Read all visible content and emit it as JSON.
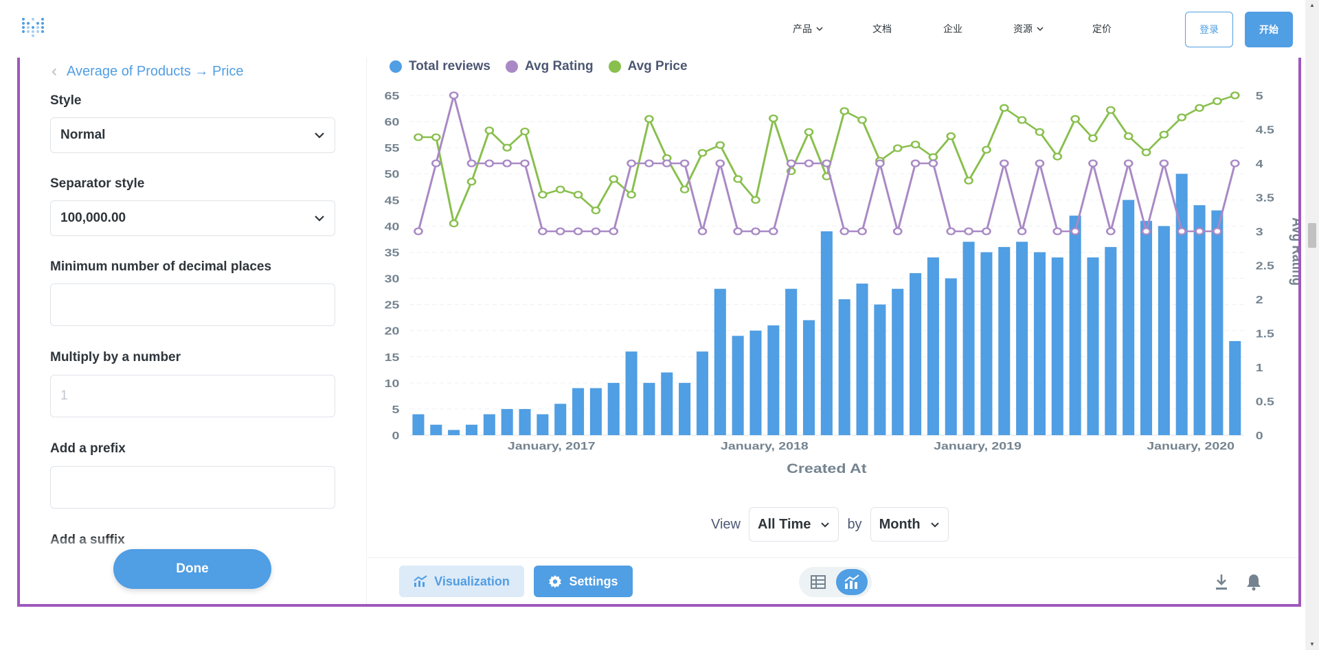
{
  "nav": {
    "items": [
      "产品",
      "文档",
      "企业",
      "资源",
      "定价"
    ],
    "login": "登录",
    "start": "开始"
  },
  "settings": {
    "breadcrumb": "Average of Products → Price",
    "style_label": "Style",
    "style_value": "Normal",
    "separator_label": "Separator style",
    "separator_value": "100,000.00",
    "min_decimals_label": "Minimum number of decimal places",
    "min_decimals_value": "",
    "multiply_label": "Multiply by a number",
    "multiply_placeholder": "1",
    "prefix_label": "Add a prefix",
    "prefix_value": "",
    "suffix_label": "Add a suffix",
    "done": "Done"
  },
  "chart_data": {
    "type": "bar",
    "legend": [
      "Total reviews",
      "Avg Rating",
      "Avg Price"
    ],
    "xlabel": "Created At",
    "ylabel_right": "Avg Rating",
    "x_ticks": [
      "January, 2017",
      "January, 2018",
      "January, 2019",
      "January, 2020"
    ],
    "y_left_ticks": [
      0,
      5,
      10,
      15,
      20,
      25,
      30,
      35,
      40,
      45,
      50,
      55,
      60,
      65
    ],
    "y_right_ticks": [
      "0",
      "0.5",
      "1",
      "1.5",
      "2",
      "2.5",
      "3",
      "3.5",
      "4",
      "4.5",
      "5"
    ],
    "ylim_left": [
      0,
      65
    ],
    "ylim_right": [
      0,
      5
    ],
    "colors": {
      "bars": "#509ee3",
      "rating": "#a989c5",
      "price": "#88bf4d"
    },
    "series": [
      {
        "name": "Total reviews",
        "axis": "left",
        "values": [
          4,
          2,
          1,
          2,
          4,
          5,
          5,
          4,
          6,
          9,
          9,
          10,
          16,
          10,
          12,
          10,
          16,
          28,
          19,
          20,
          21,
          28,
          22,
          39,
          26,
          29,
          25,
          28,
          31,
          34,
          30,
          37,
          35,
          36,
          37,
          35,
          34,
          42,
          34,
          36,
          45,
          41,
          40,
          50,
          44,
          43,
          18
        ]
      },
      {
        "name": "Avg Rating",
        "axis": "right",
        "values": [
          3,
          4,
          5,
          4,
          4,
          4,
          4,
          3,
          3,
          3,
          3,
          3,
          4,
          4,
          4,
          4,
          3,
          4,
          3,
          3,
          3,
          4,
          4,
          4,
          3,
          3,
          4,
          3,
          4,
          4,
          3,
          3,
          3,
          4,
          3,
          4,
          3,
          3,
          4,
          3,
          4,
          3,
          4,
          3,
          3,
          3,
          4
        ]
      },
      {
        "name": "Avg Price",
        "axis": "left",
        "values": [
          57,
          57,
          40.5,
          48.5,
          58.3,
          55,
          58.1,
          46,
          47,
          46,
          43,
          49,
          46,
          60.5,
          53,
          47,
          54,
          55.5,
          49,
          45,
          60.6,
          50.5,
          58,
          49.5,
          62,
          60.3,
          52.5,
          54.9,
          55.6,
          53.2,
          57.2,
          48.7,
          54.6,
          62.6,
          60.3,
          58,
          53.3,
          60.5,
          56.8,
          62.2,
          57.2,
          54.1,
          57.5,
          60.8,
          62.6,
          63.9,
          65
        ]
      }
    ]
  },
  "view": {
    "label": "View",
    "range": "All Time",
    "by": "by",
    "unit": "Month"
  },
  "footer": {
    "visualization": "Visualization",
    "settings": "Settings"
  }
}
